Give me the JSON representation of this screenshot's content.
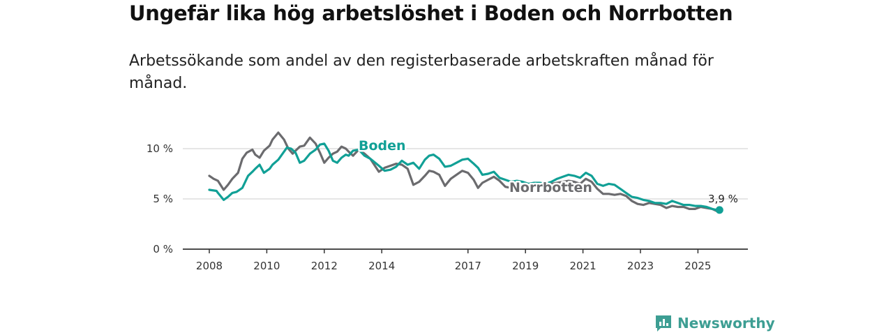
{
  "title": "Ungefär lika hög arbetslöshet i Boden och Norrbotten",
  "subtitle": "Arbetssökande som andel av den registerbaserade arbetskraften månad för månad.",
  "brand": {
    "name": "Newsworthy"
  },
  "colors": {
    "boden": "#11a096",
    "norrbotten": "#6b6b6e",
    "grid": "#dddddd",
    "axis": "#333333",
    "brand": "#3d9e93"
  },
  "chart_data": {
    "type": "line",
    "title": "Ungefär lika hög arbetslöshet i Boden och Norrbotten",
    "xlabel": "",
    "ylabel": "",
    "xlim": [
      2007.9,
      2026.5
    ],
    "ylim": [
      0,
      10.5
    ],
    "yticks": [
      0,
      5,
      10
    ],
    "ytick_labels": [
      "0 %",
      "5 %",
      "10 %"
    ],
    "xticks": [
      2008,
      2010,
      2012,
      2014,
      2017,
      2019,
      2021,
      2023,
      2025
    ],
    "xtick_labels": [
      "2008",
      "2010",
      "2012",
      "2014",
      "2017",
      "2019",
      "2021",
      "2023",
      "2025"
    ],
    "grid": true,
    "end_label": "3,9 %",
    "series": [
      {
        "name": "Boden",
        "x": [
          2008.0,
          2008.25,
          2008.3,
          2008.5,
          2008.65,
          2008.8,
          2008.95,
          2009.15,
          2009.35,
          2009.5,
          2009.6,
          2009.75,
          2009.9,
          2010.1,
          2010.2,
          2010.4,
          2010.5,
          2010.7,
          2010.85,
          2011.0,
          2011.15,
          2011.3,
          2011.5,
          2011.7,
          2011.85,
          2012.0,
          2012.15,
          2012.3,
          2012.45,
          2012.6,
          2012.75,
          2012.85,
          2013.0,
          2013.2,
          2013.4,
          2013.6,
          2013.9,
          2014.1,
          2014.3,
          2014.5,
          2014.7,
          2014.9,
          2015.1,
          2015.3,
          2015.5,
          2015.65,
          2015.8,
          2016.0,
          2016.2,
          2016.4,
          2016.6,
          2016.8,
          2017.0,
          2017.2,
          2017.35,
          2017.5,
          2017.7,
          2017.9,
          2018.1,
          2018.3,
          2018.5,
          2018.7,
          2018.9,
          2019.1,
          2019.3,
          2019.5,
          2019.7,
          2019.9,
          2020.1,
          2020.3,
          2020.5,
          2020.7,
          2020.9,
          2021.1,
          2021.3,
          2021.5,
          2021.7,
          2021.9,
          2022.1,
          2022.3,
          2022.5,
          2022.7,
          2022.9,
          2023.1,
          2023.3,
          2023.5,
          2023.7,
          2023.9,
          2024.1,
          2024.3,
          2024.5,
          2024.7,
          2024.9,
          2025.1,
          2025.3,
          2025.5,
          2025.65,
          2025.75
        ],
        "values": [
          5.9,
          5.8,
          5.6,
          4.9,
          5.2,
          5.6,
          5.7,
          6.1,
          7.3,
          7.7,
          8.0,
          8.4,
          7.6,
          8.0,
          8.4,
          8.9,
          9.3,
          10.1,
          10.0,
          9.6,
          8.6,
          8.8,
          9.5,
          9.9,
          10.4,
          10.5,
          9.8,
          8.8,
          8.6,
          9.1,
          9.4,
          9.3,
          9.8,
          9.9,
          9.3,
          9.0,
          8.3,
          7.8,
          7.9,
          8.2,
          8.8,
          8.4,
          8.6,
          8.0,
          8.9,
          9.3,
          9.4,
          9.0,
          8.2,
          8.3,
          8.6,
          8.9,
          9.0,
          8.5,
          8.1,
          7.4,
          7.5,
          7.7,
          7.1,
          6.9,
          6.7,
          6.8,
          6.7,
          6.5,
          6.6,
          6.6,
          6.5,
          6.7,
          7.0,
          7.2,
          7.4,
          7.3,
          7.1,
          7.6,
          7.3,
          6.5,
          6.3,
          6.5,
          6.4,
          6.0,
          5.6,
          5.2,
          5.1,
          4.9,
          4.8,
          4.6,
          4.6,
          4.5,
          4.8,
          4.6,
          4.4,
          4.4,
          4.3,
          4.3,
          4.2,
          4.0,
          3.9,
          3.9
        ]
      },
      {
        "name": "Norrbotten",
        "x": [
          2008.0,
          2008.15,
          2008.3,
          2008.5,
          2008.65,
          2008.8,
          2009.0,
          2009.15,
          2009.3,
          2009.5,
          2009.6,
          2009.75,
          2009.9,
          2010.1,
          2010.2,
          2010.4,
          2010.6,
          2010.75,
          2010.9,
          2011.0,
          2011.15,
          2011.3,
          2011.5,
          2011.7,
          2011.85,
          2012.0,
          2012.15,
          2012.3,
          2012.45,
          2012.6,
          2012.75,
          2012.85,
          2013.0,
          2013.2,
          2013.4,
          2013.6,
          2013.9,
          2014.1,
          2014.3,
          2014.5,
          2014.7,
          2014.9,
          2015.1,
          2015.3,
          2015.5,
          2015.65,
          2015.8,
          2016.0,
          2016.2,
          2016.4,
          2016.6,
          2016.8,
          2017.0,
          2017.2,
          2017.35,
          2017.5,
          2017.7,
          2017.9,
          2018.1,
          2018.3,
          2018.5,
          2018.7,
          2018.9,
          2019.1,
          2019.3,
          2019.5,
          2019.7,
          2019.9,
          2020.1,
          2020.3,
          2020.5,
          2020.7,
          2020.9,
          2021.1,
          2021.3,
          2021.5,
          2021.7,
          2021.9,
          2022.1,
          2022.3,
          2022.5,
          2022.7,
          2022.9,
          2023.1,
          2023.3,
          2023.5,
          2023.7,
          2023.9,
          2024.1,
          2024.3,
          2024.5,
          2024.7,
          2024.9,
          2025.1,
          2025.3,
          2025.5,
          2025.65,
          2025.75
        ],
        "values": [
          7.3,
          7.0,
          6.8,
          5.9,
          6.4,
          7.0,
          7.6,
          9.0,
          9.6,
          9.9,
          9.4,
          9.1,
          9.8,
          10.3,
          10.9,
          11.6,
          10.9,
          10.0,
          9.5,
          9.8,
          10.2,
          10.3,
          11.1,
          10.5,
          9.6,
          8.6,
          9.1,
          9.5,
          9.7,
          10.2,
          10.0,
          9.7,
          9.3,
          9.9,
          9.5,
          9.0,
          7.7,
          8.1,
          8.3,
          8.5,
          8.4,
          8.0,
          6.4,
          6.7,
          7.3,
          7.8,
          7.7,
          7.4,
          6.3,
          7.0,
          7.4,
          7.8,
          7.6,
          6.9,
          6.1,
          6.6,
          6.9,
          7.2,
          6.8,
          6.2,
          6.1,
          6.3,
          6.4,
          6.2,
          6.3,
          6.4,
          6.2,
          6.5,
          6.6,
          6.7,
          6.8,
          6.7,
          6.5,
          7.0,
          6.7,
          6.0,
          5.5,
          5.5,
          5.4,
          5.5,
          5.3,
          4.8,
          4.5,
          4.4,
          4.6,
          4.5,
          4.4,
          4.1,
          4.3,
          4.2,
          4.2,
          4.0,
          4.0,
          4.2,
          4.1,
          4.0,
          3.8,
          3.9
        ]
      }
    ]
  }
}
